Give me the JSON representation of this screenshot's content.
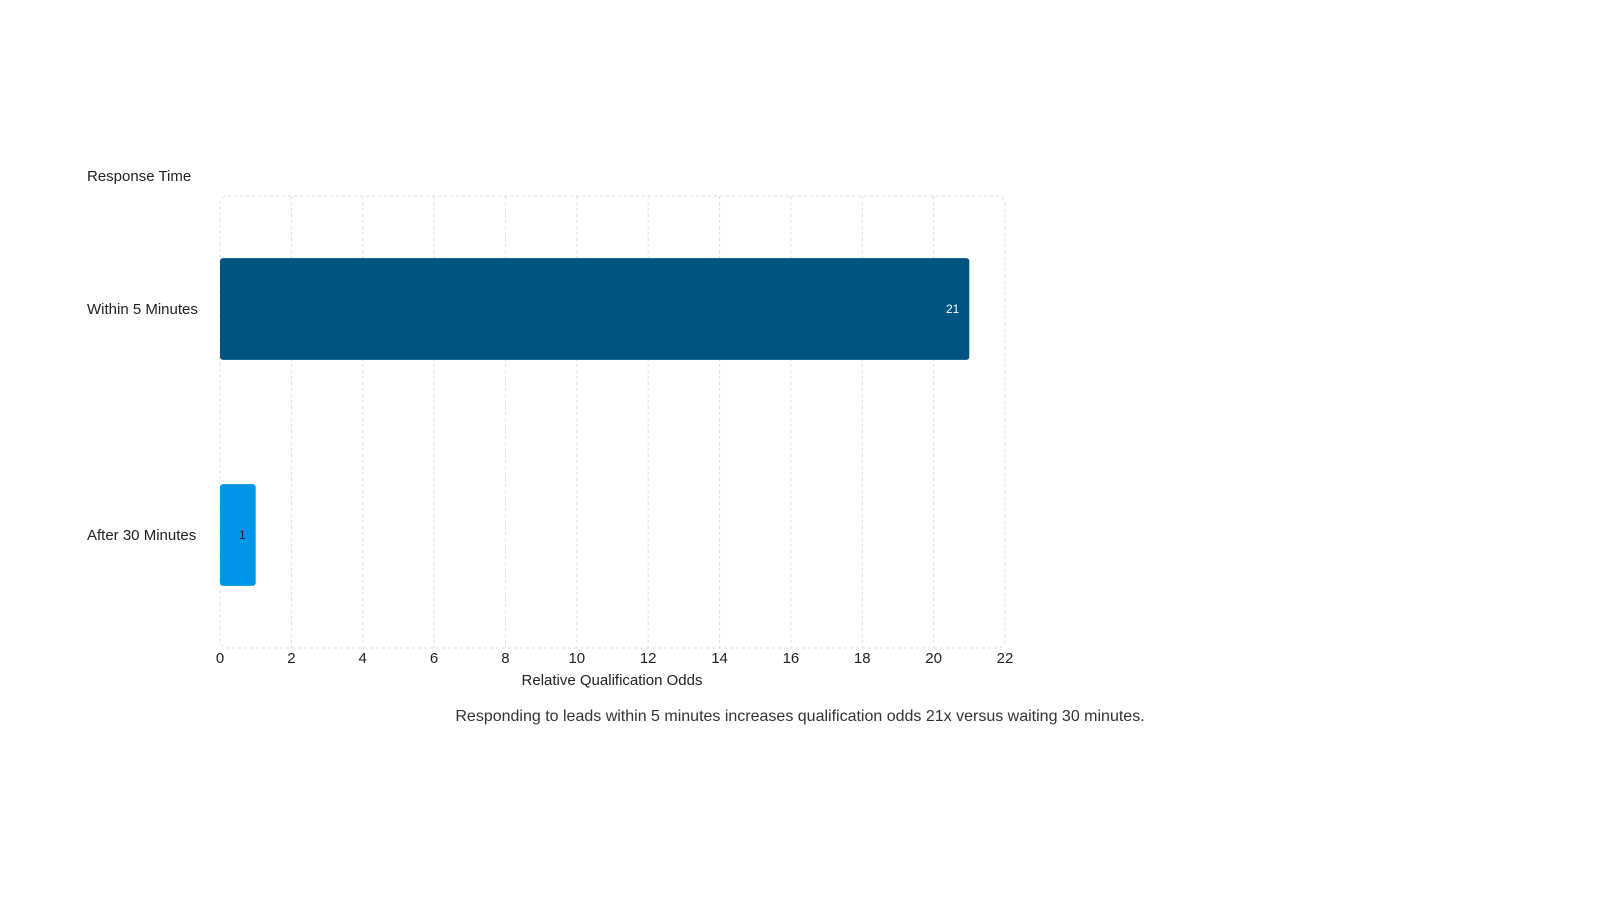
{
  "chart_data": {
    "type": "bar",
    "orientation": "horizontal",
    "ylabel": "Response Time",
    "xlabel": "Relative Qualification Odds",
    "categories": [
      "Within 5 Minutes",
      "After 30 Minutes"
    ],
    "values": [
      21,
      1
    ],
    "bar_colors": [
      "#005580",
      "#0095e8"
    ],
    "xlim": [
      0,
      22
    ],
    "xticks": [
      "0",
      "2",
      "4",
      "6",
      "8",
      "10",
      "12",
      "14",
      "16",
      "18",
      "20",
      "22"
    ],
    "grid": true,
    "data_labels": [
      "21",
      "1"
    ],
    "data_label_colors": [
      "#ffffff",
      "#1f1f1f"
    ]
  },
  "caption": "Responding to leads within 5 minutes increases qualification odds 21x versus waiting 30 minutes."
}
